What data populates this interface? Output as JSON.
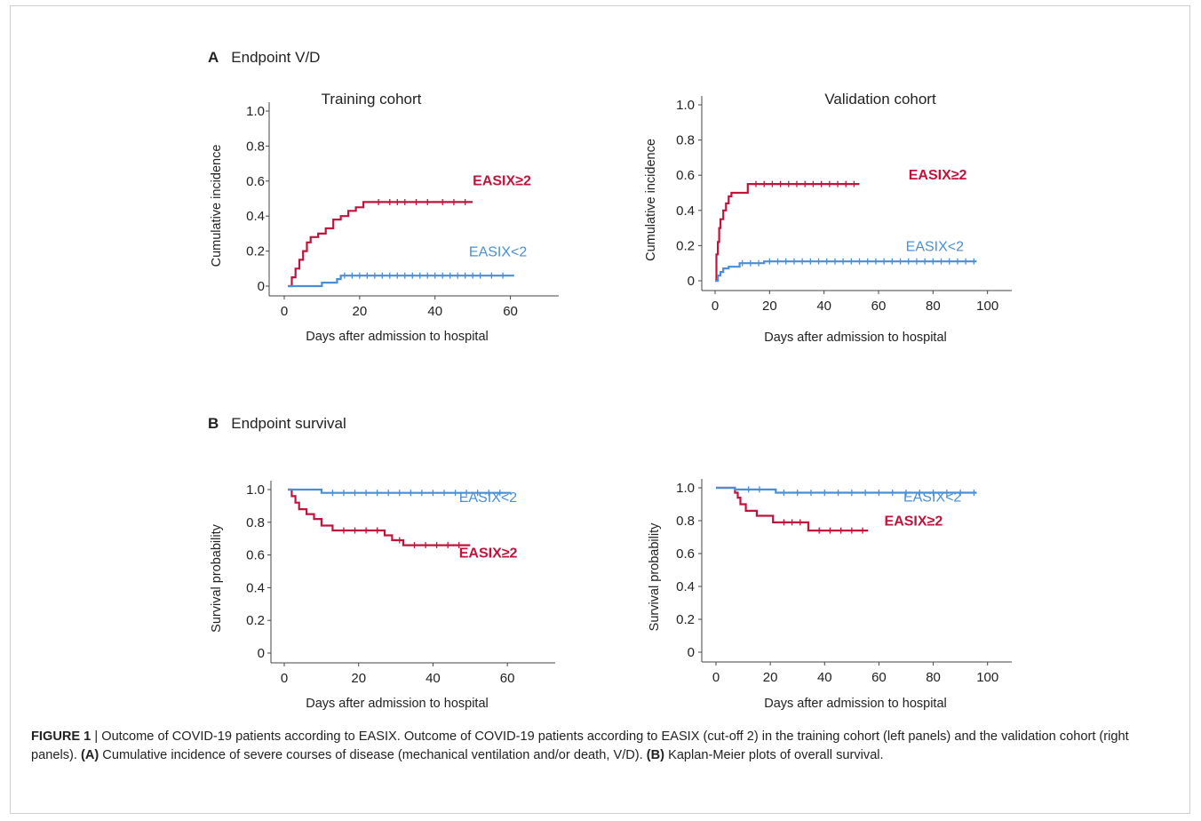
{
  "sections": {
    "a": {
      "letter": "A",
      "title": "Endpoint V/D"
    },
    "b": {
      "letter": "B",
      "title": "Endpoint survival"
    }
  },
  "caption": {
    "figure_label": "FIGURE 1",
    "separator": " | ",
    "intro": "Outcome of COVID-19 patients according to EASIX. Outcome of COVID-19 patients according to EASIX (cut-off 2) in the training cohort (left panels) and the validation cohort (right panels). ",
    "a_tag": "(A)",
    "a_text": " Cumulative incidence of severe courses of disease (mechanical ventilation and/or death, V/D). ",
    "b_tag": "(B)",
    "b_text": " Kaplan-Meier plots of overall survival."
  },
  "colors": {
    "high": "#c0143c",
    "low": "#4a8fd6",
    "axis": "#444444"
  },
  "chart_data": [
    {
      "id": "a-training",
      "type": "line",
      "title": "Training cohort",
      "xlabel": "Days after admission to hospital",
      "ylabel": "Cumulative incidence",
      "xlim": [
        0,
        70
      ],
      "ylim": [
        0,
        1.0
      ],
      "xticks": [
        0,
        20,
        40,
        60
      ],
      "xtick_labels": [
        "0",
        "20",
        "40",
        "60"
      ],
      "yticks": [
        0,
        0.2,
        0.4,
        0.6,
        0.8,
        1.0
      ],
      "ytick_labels": [
        "0",
        "0.2",
        "0.4",
        "0.6",
        "0.8",
        "1.0"
      ],
      "series": [
        {
          "name": "EASIX≥2",
          "color": "#c0143c",
          "step": true,
          "x": [
            1,
            2,
            3,
            4,
            5,
            6,
            7,
            9,
            11,
            13,
            15,
            17,
            19,
            21,
            50
          ],
          "y": [
            0,
            0.05,
            0.1,
            0.15,
            0.2,
            0.25,
            0.28,
            0.3,
            0.33,
            0.38,
            0.4,
            0.43,
            0.45,
            0.48,
            0.48
          ],
          "censor": [
            25,
            28,
            30,
            32,
            35,
            38,
            42,
            45,
            48
          ]
        },
        {
          "name": "EASIX<2",
          "color": "#4a8fd6",
          "step": true,
          "x": [
            1,
            10,
            14,
            15,
            61
          ],
          "y": [
            0,
            0.02,
            0.04,
            0.06,
            0.06
          ],
          "censor": [
            16,
            18,
            20,
            22,
            24,
            26,
            28,
            30,
            32,
            34,
            36,
            38,
            40,
            42,
            44,
            46,
            48,
            50,
            52,
            55,
            58
          ]
        }
      ],
      "labels": [
        {
          "text": "EASIX≥2",
          "series": 0,
          "x": 50,
          "y": 0.575
        },
        {
          "text": "EASIX<2",
          "series": 1,
          "x": 49,
          "y": 0.17
        }
      ]
    },
    {
      "id": "a-validation",
      "type": "line",
      "title": "Validation cohort",
      "xlabel": "Days after admission to hospital",
      "ylabel": "Cumulative incidence",
      "xlim": [
        0,
        105
      ],
      "ylim": [
        0,
        1.0
      ],
      "xticks": [
        0,
        20,
        40,
        60,
        80,
        100
      ],
      "xtick_labels": [
        "0",
        "20",
        "40",
        "60",
        "80",
        "100"
      ],
      "yticks": [
        0,
        0.2,
        0.4,
        0.6,
        0.8,
        1.0
      ],
      "ytick_labels": [
        "0",
        "0.2",
        "0.4",
        "0.6",
        "0.8",
        "1.0"
      ],
      "series": [
        {
          "name": "EASIX≥2",
          "color": "#c0143c",
          "step": true,
          "x": [
            0,
            0.5,
            1,
            1.5,
            2,
            3,
            4,
            5,
            6,
            12,
            53
          ],
          "y": [
            0,
            0.15,
            0.22,
            0.3,
            0.35,
            0.4,
            0.44,
            0.48,
            0.5,
            0.55,
            0.55
          ],
          "censor": [
            15,
            18,
            21,
            24,
            27,
            30,
            33,
            36,
            39,
            42,
            45,
            48,
            51
          ]
        },
        {
          "name": "EASIX<2",
          "color": "#4a8fd6",
          "step": true,
          "x": [
            0,
            1,
            2,
            3,
            5,
            9,
            18,
            96
          ],
          "y": [
            0,
            0.03,
            0.05,
            0.07,
            0.08,
            0.1,
            0.11,
            0.11
          ],
          "censor": [
            10,
            13,
            16,
            20,
            23,
            26,
            29,
            32,
            35,
            38,
            41,
            44,
            47,
            50,
            53,
            56,
            59,
            62,
            65,
            68,
            71,
            74,
            77,
            80,
            83,
            86,
            89,
            92,
            95
          ]
        }
      ],
      "labels": [
        {
          "text": "EASIX≥2",
          "series": 0,
          "x": 71,
          "y": 0.575
        },
        {
          "text": "EASIX<2",
          "series": 1,
          "x": 70,
          "y": 0.17
        }
      ]
    },
    {
      "id": "b-training",
      "type": "line",
      "title": "",
      "xlabel": "Days after admission to hospital",
      "ylabel": "Survival probability",
      "xlim": [
        0,
        70
      ],
      "ylim": [
        0,
        1.0
      ],
      "xticks": [
        0,
        20,
        40,
        60
      ],
      "xtick_labels": [
        "0",
        "20",
        "40",
        "60"
      ],
      "yticks": [
        0,
        0.2,
        0.4,
        0.6,
        0.8,
        1.0
      ],
      "ytick_labels": [
        "0",
        "0.2",
        "0.4",
        "0.6",
        "0.8",
        "1.0"
      ],
      "series": [
        {
          "name": "EASIX≥2",
          "color": "#c0143c",
          "step": true,
          "x": [
            1,
            2,
            3,
            4,
            6,
            8,
            10,
            13,
            27,
            29,
            32,
            50
          ],
          "y": [
            1.0,
            0.96,
            0.92,
            0.88,
            0.85,
            0.82,
            0.78,
            0.75,
            0.72,
            0.69,
            0.66,
            0.66
          ],
          "censor": [
            16,
            19,
            22,
            25,
            31,
            35,
            38,
            41,
            44,
            47
          ]
        },
        {
          "name": "EASIX<2",
          "color": "#4a8fd6",
          "step": true,
          "x": [
            1,
            10,
            61
          ],
          "y": [
            1.0,
            0.98,
            0.98
          ],
          "censor": [
            13,
            16,
            19,
            22,
            25,
            28,
            31,
            34,
            37,
            40,
            43,
            46,
            49,
            52,
            55,
            58
          ]
        }
      ],
      "labels": [
        {
          "text": "EASIX<2",
          "series": 1,
          "x": 47,
          "y": 0.925
        },
        {
          "text": "EASIX≥2",
          "series": 0,
          "x": 47,
          "y": 0.585
        }
      ]
    },
    {
      "id": "b-validation",
      "type": "line",
      "title": "",
      "xlabel": "Days after admission to hospital",
      "ylabel": "Survival probability",
      "xlim": [
        0,
        105
      ],
      "ylim": [
        0,
        1.0
      ],
      "xticks": [
        0,
        20,
        40,
        60,
        80,
        100
      ],
      "xtick_labels": [
        "0",
        "20",
        "40",
        "60",
        "80",
        "100"
      ],
      "yticks": [
        0,
        0.2,
        0.4,
        0.6,
        0.8,
        1.0
      ],
      "ytick_labels": [
        "0",
        "0.2",
        "0.4",
        "0.6",
        "0.8",
        "1.0"
      ],
      "series": [
        {
          "name": "EASIX≥2",
          "color": "#c0143c",
          "step": true,
          "x": [
            0,
            7,
            8,
            9,
            11,
            15,
            21,
            34,
            56
          ],
          "y": [
            1.0,
            0.97,
            0.94,
            0.9,
            0.86,
            0.83,
            0.79,
            0.74,
            0.74
          ],
          "censor": [
            25,
            28,
            31,
            38,
            42,
            46,
            50,
            54
          ]
        },
        {
          "name": "EASIX<2",
          "color": "#4a8fd6",
          "step": true,
          "x": [
            0,
            7,
            22,
            96
          ],
          "y": [
            1.0,
            0.99,
            0.97,
            0.97
          ],
          "censor": [
            12,
            16,
            25,
            30,
            35,
            40,
            45,
            50,
            55,
            60,
            65,
            70,
            75,
            80,
            85,
            90,
            95
          ]
        }
      ],
      "labels": [
        {
          "text": "EASIX<2",
          "series": 1,
          "x": 69,
          "y": 0.915
        },
        {
          "text": "EASIX≥2",
          "series": 0,
          "x": 62,
          "y": 0.77
        }
      ]
    }
  ]
}
